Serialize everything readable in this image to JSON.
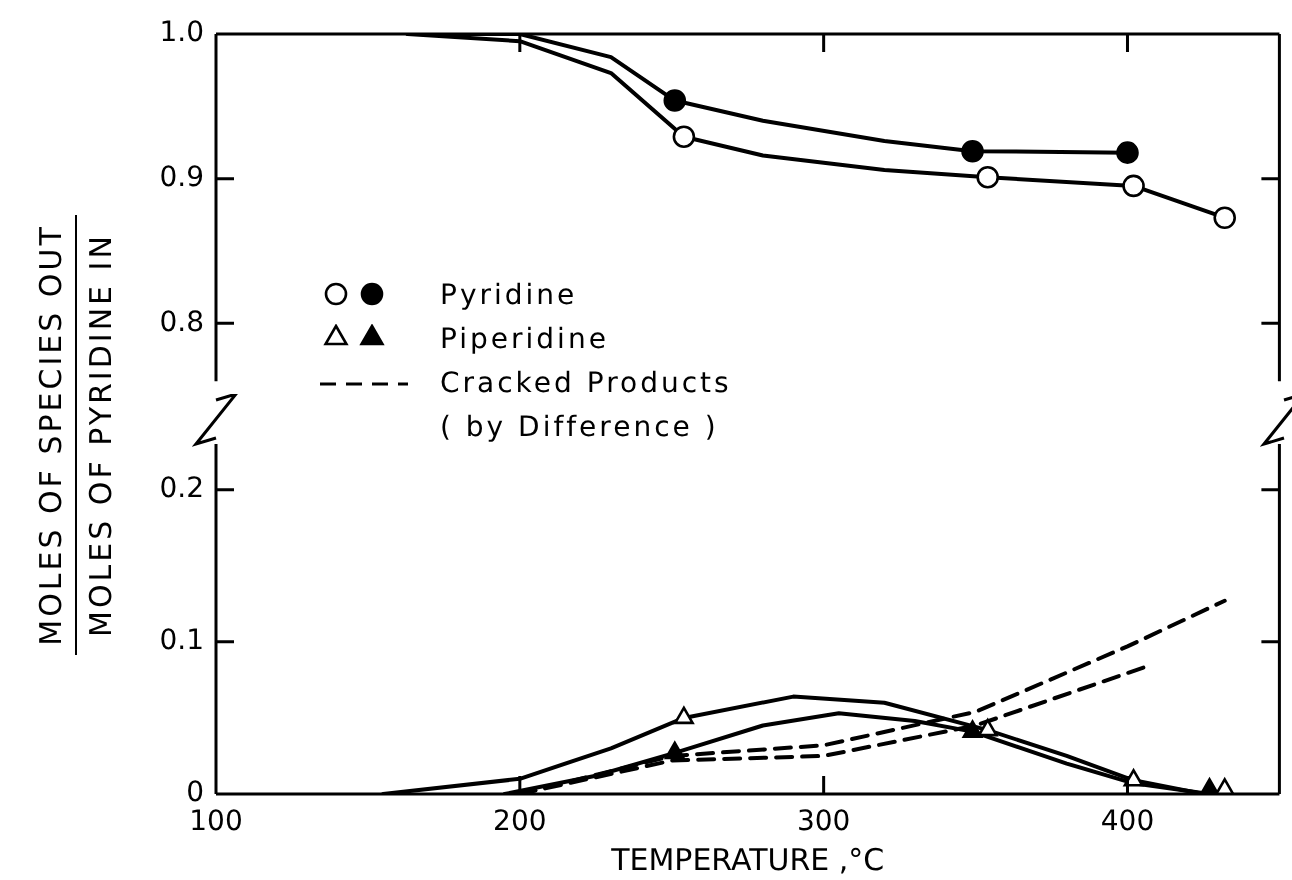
{
  "chart_data": [
    {
      "type": "line",
      "ylabel": "MOLES OF SPECIES OUT\nMOLES OF PYRIDINE IN",
      "legend": "left",
      "grid": false,
      "tick_labels": "y",
      "xlim": [
        100,
        450
      ],
      "xticks": [
        100,
        200,
        300,
        400
      ],
      "ylim": [
        0.76,
        1.0
      ],
      "yticks": [
        0.8,
        0.9,
        {
          "value": 1.0,
          "label": "1.0"
        }
      ],
      "series": [
        {
          "type": "scatter",
          "marker": "circle",
          "color": "#ffffff",
          "x": [
            254,
            354,
            402,
            432
          ],
          "values": [
            0.929,
            0.901,
            0.895,
            0.873
          ]
        },
        {
          "name": "Pyridine",
          "type": "scatter",
          "marker": "circle",
          "color": "#000000",
          "x": [
            251,
            349,
            400
          ],
          "values": [
            0.954,
            0.919,
            0.918
          ]
        },
        {
          "type": "line",
          "marker": "none",
          "line_style": "solid",
          "color": "#000000",
          "x": [
            163,
            200,
            230,
            254,
            280,
            320,
            354,
            402,
            432
          ],
          "values": [
            1.0,
            0.995,
            0.973,
            0.929,
            0.916,
            0.906,
            0.901,
            0.895,
            0.873
          ]
        },
        {
          "type": "line",
          "marker": "none",
          "line_style": "solid",
          "color": "#000000",
          "x": [
            163,
            200,
            230,
            251,
            280,
            320,
            349,
            400
          ],
          "values": [
            1.0,
            1.0,
            0.984,
            0.954,
            0.94,
            0.926,
            0.919,
            0.918
          ]
        }
      ]
    },
    {
      "type": "line",
      "xlabel": "TEMPERATURE ,°C",
      "legend": "top left",
      "grid": false,
      "xlim": [
        100,
        450
      ],
      "xticks": [
        100,
        200,
        300,
        400
      ],
      "ylim": [
        0,
        0.23
      ],
      "yticks": [
        0,
        0.1,
        0.2
      ],
      "series": [
        {
          "type": "scatter",
          "marker": "triangle",
          "color": "#ffffff",
          "x": [
            254,
            354,
            402,
            432
          ],
          "values": [
            0.05,
            0.042,
            0.009,
            0.003
          ]
        },
        {
          "name": "Piperidine",
          "type": "scatter",
          "marker": "triangle",
          "color": "#000000",
          "x": [
            251,
            349,
            427
          ],
          "values": [
            0.027,
            0.041,
            0.003
          ]
        },
        {
          "type": "line",
          "marker": "none",
          "line_style": "solid",
          "color": "#000000",
          "x": [
            155,
            200,
            230,
            254,
            290,
            320,
            354,
            380,
            402,
            425
          ],
          "values": [
            0,
            0.01,
            0.03,
            0.05,
            0.064,
            0.06,
            0.042,
            0.025,
            0.009,
            0
          ]
        },
        {
          "type": "line",
          "marker": "none",
          "line_style": "solid",
          "color": "#000000",
          "x": [
            195,
            225,
            251,
            280,
            305,
            330,
            349,
            380,
            402,
            427
          ],
          "values": [
            0,
            0.012,
            0.027,
            0.045,
            0.053,
            0.048,
            0.041,
            0.02,
            0.007,
            0
          ]
        },
        {
          "name": "Cracked Products\n( by Difference )",
          "type": "line",
          "marker": "none",
          "line_style": "dashed",
          "color": "#000000",
          "x": [
            200,
            250,
            300,
            350,
            400,
            432
          ],
          "values": [
            0,
            0.025,
            0.032,
            0.054,
            0.097,
            0.127
          ]
        },
        {
          "type": "line",
          "marker": "none",
          "line_style": "dashed",
          "color": "#000000",
          "x": [
            200,
            250,
            300,
            350,
            408
          ],
          "values": [
            0,
            0.022,
            0.025,
            0.045,
            0.085
          ]
        }
      ]
    }
  ]
}
